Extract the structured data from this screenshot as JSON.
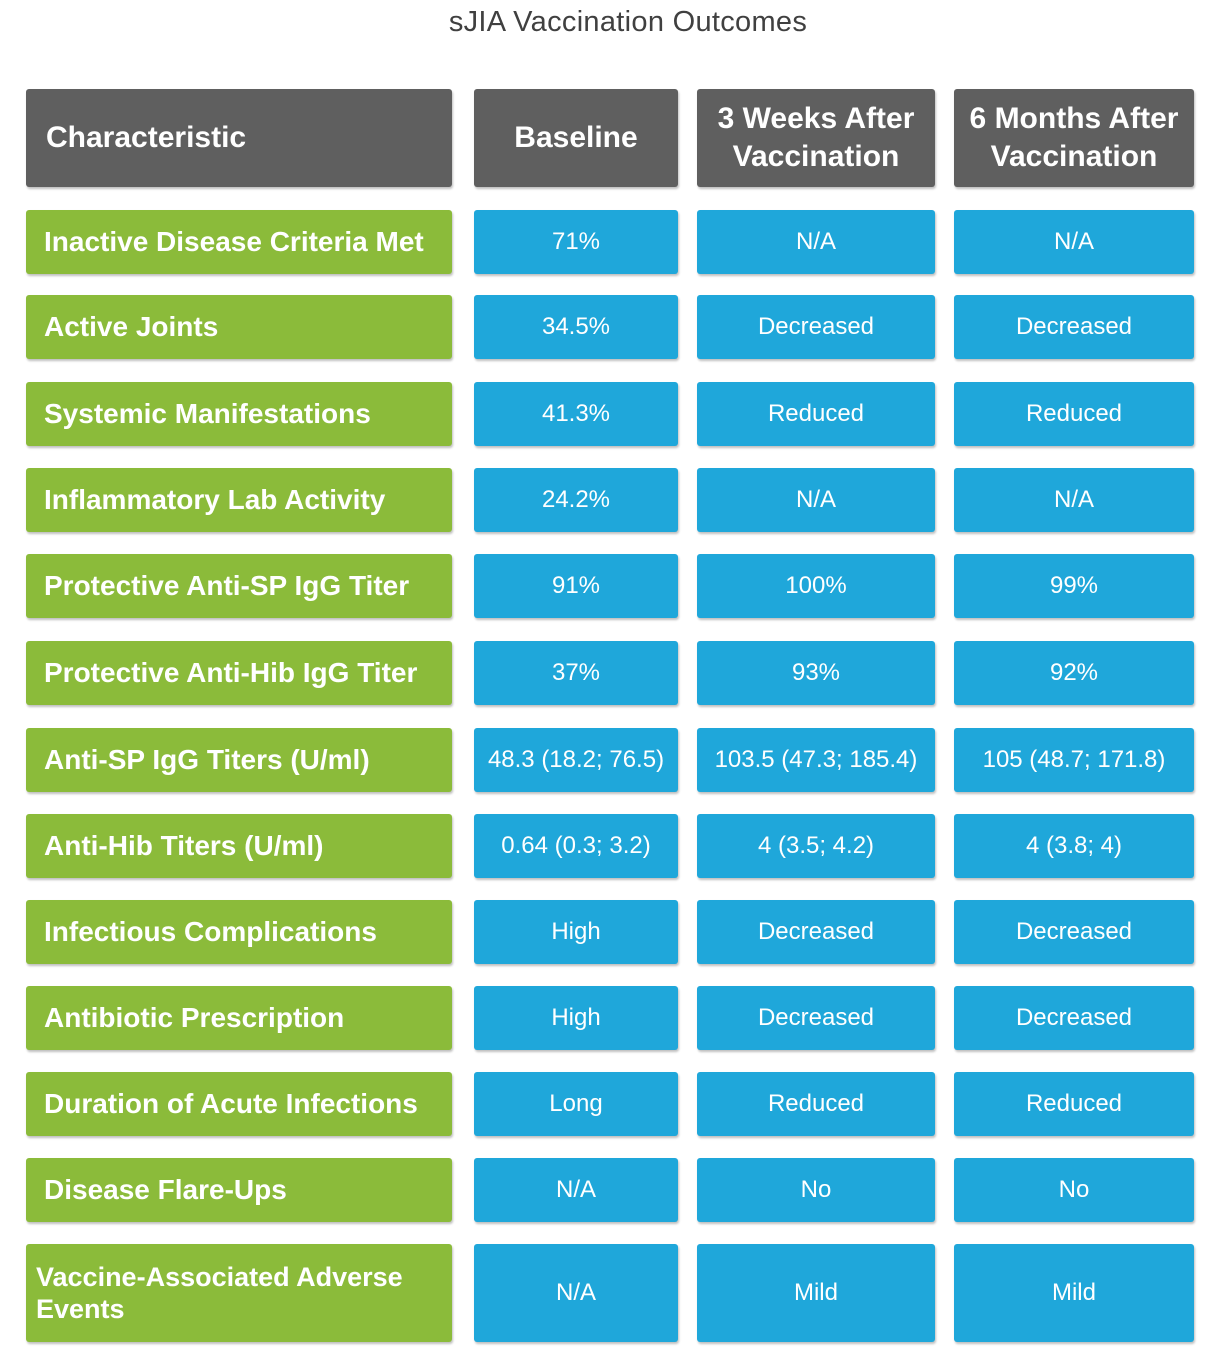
{
  "title": "sJIA Vaccination Outcomes",
  "chart_data": {
    "type": "table",
    "title": "sJIA Vaccination Outcomes",
    "columns": [
      "Characteristic",
      "Baseline",
      "3 Weeks After Vaccination",
      "6 Months After Vaccination"
    ],
    "rows": [
      [
        "Inactive Disease Criteria Met",
        "71%",
        "N/A",
        "N/A"
      ],
      [
        "Active Joints",
        "34.5%",
        "Decreased",
        "Decreased"
      ],
      [
        "Systemic Manifestations",
        "41.3%",
        "Reduced",
        "Reduced"
      ],
      [
        "Inflammatory Lab Activity",
        "24.2%",
        "N/A",
        "N/A"
      ],
      [
        "Protective Anti-SP IgG Titer",
        "91%",
        "100%",
        "99%"
      ],
      [
        "Protective Anti-Hib IgG Titer",
        "37%",
        "93%",
        "92%"
      ],
      [
        "Anti-SP IgG Titers (U/ml)",
        "48.3 (18.2; 76.5)",
        "103.5 (47.3; 185.4)",
        "105 (48.7; 171.8)"
      ],
      [
        "Anti-Hib Titers (U/ml)",
        "0.64 (0.3; 3.2)",
        "4 (3.5; 4.2)",
        "4 (3.8; 4)"
      ],
      [
        "Infectious Complications",
        "High",
        "Decreased",
        "Decreased"
      ],
      [
        "Antibiotic Prescription",
        "High",
        "Decreased",
        "Decreased"
      ],
      [
        "Duration of Acute Infections",
        "Long",
        "Reduced",
        "Reduced"
      ],
      [
        "Disease Flare-Ups",
        "N/A",
        "No",
        "No"
      ],
      [
        "Vaccine-Associated Adverse Events",
        "N/A",
        "Mild",
        "Mild"
      ]
    ],
    "colors": {
      "header": "#5f5f5f",
      "label": "#8bbb3a",
      "value": "#1fa7da",
      "text": "#ffffff"
    }
  }
}
